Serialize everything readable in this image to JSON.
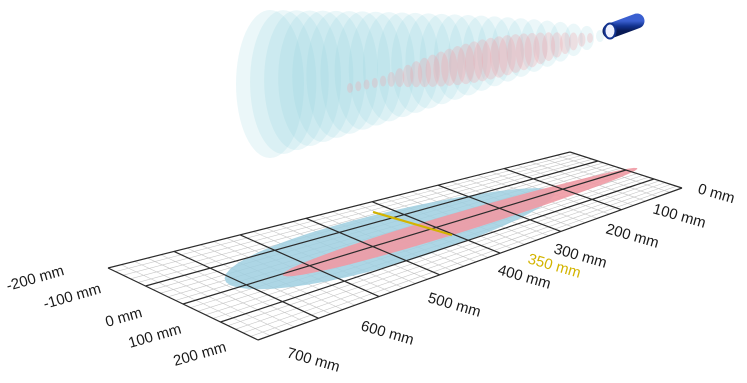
{
  "colors": {
    "beam_wide": "#8ed3df",
    "beam_narrow": "#f2a3a8",
    "footprint_wide": "#9fcfe0",
    "footprint_narrow": "#ef9aa4",
    "grid_minor": "#c7c7c7",
    "grid_major": "#2b2b2b",
    "highlight": "#d3b400",
    "sensor": "#12338f"
  },
  "icons": {
    "sensor": "cylindrical-sensor-icon"
  },
  "axes": {
    "lateral_labels": [
      "-200 mm",
      "-100 mm",
      "0 mm",
      "100 mm",
      "200 mm"
    ],
    "distance_labels": [
      "0 mm",
      "100 mm",
      "200 mm",
      "300 mm",
      "400 mm",
      "500 mm",
      "600 mm",
      "700 mm"
    ],
    "highlight_label": "350 mm"
  }
}
